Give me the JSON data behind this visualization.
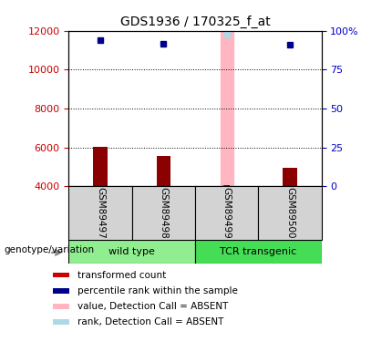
{
  "title": "GDS1936 / 170325_f_at",
  "samples": [
    "GSM89497",
    "GSM89498",
    "GSM89499",
    "GSM89500"
  ],
  "transformed_counts": [
    6050,
    5550,
    4050,
    4950
  ],
  "percentile_ranks": [
    11500,
    11350,
    11800,
    11300
  ],
  "absent_sample_idx": 2,
  "ylim_left": [
    4000,
    12000
  ],
  "ylim_right": [
    0,
    100
  ],
  "yticks_left": [
    4000,
    6000,
    8000,
    10000,
    12000
  ],
  "yticks_right": [
    0,
    25,
    50,
    75,
    100
  ],
  "ytick_right_labels": [
    "0",
    "25",
    "50",
    "75",
    "100%"
  ],
  "bar_color": "#8B0000",
  "rank_color": "#00008B",
  "absent_value_color": "#FFB6C1",
  "absent_rank_color": "#ADD8E6",
  "tick_color_left": "#CC0000",
  "tick_color_right": "#0000CC",
  "grid_color": "#000000",
  "wt_color": "#90EE90",
  "tcr_color": "#44DD55",
  "sample_box_color": "#D3D3D3",
  "legend_items": [
    {
      "label": "transformed count",
      "color": "#CC0000"
    },
    {
      "label": "percentile rank within the sample",
      "color": "#00008B"
    },
    {
      "label": "value, Detection Call = ABSENT",
      "color": "#FFB6C1"
    },
    {
      "label": "rank, Detection Call = ABSENT",
      "color": "#ADD8E6"
    }
  ],
  "genotype_label": "genotype/variation"
}
